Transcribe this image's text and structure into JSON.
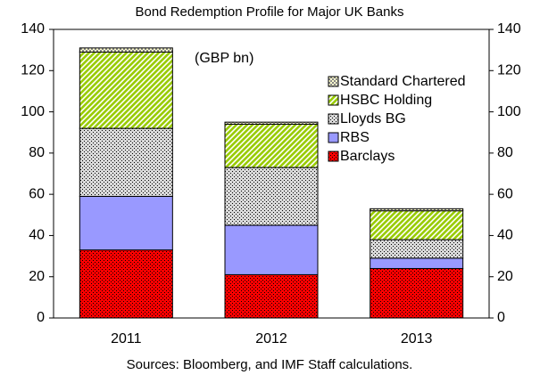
{
  "chart_data": {
    "type": "stacked_bar",
    "title": "Bond Redemption Profile for Major UK Banks",
    "annotation": "(GBP bn)",
    "source": "Sources: Bloomberg, and IMF Staff calculations.",
    "categories": [
      "2011",
      "2012",
      "2013"
    ],
    "series": [
      {
        "name": "Barclays",
        "color": "#ff0000",
        "pattern": "dots",
        "values": [
          33,
          21,
          24
        ]
      },
      {
        "name": "RBS",
        "color": "#9999ff",
        "pattern": "solid",
        "values": [
          26,
          24,
          5
        ]
      },
      {
        "name": "Lloyds BG",
        "color": "#d9d9d9",
        "pattern": "dots",
        "values": [
          33,
          28,
          9
        ]
      },
      {
        "name": "HSBC Holding",
        "color": "#99cc00",
        "pattern": "hatch",
        "values": [
          37,
          21,
          14
        ]
      },
      {
        "name": "Standard Chartered",
        "color": "#ffffcc",
        "pattern": "checks",
        "values": [
          2,
          1,
          1
        ]
      }
    ],
    "ylim": [
      0,
      140
    ],
    "yticks": [
      0,
      20,
      40,
      60,
      80,
      100,
      120,
      140
    ],
    "y2lim": [
      0,
      140
    ],
    "y2ticks": [
      0,
      20,
      40,
      60,
      80,
      100,
      120,
      140
    ]
  }
}
